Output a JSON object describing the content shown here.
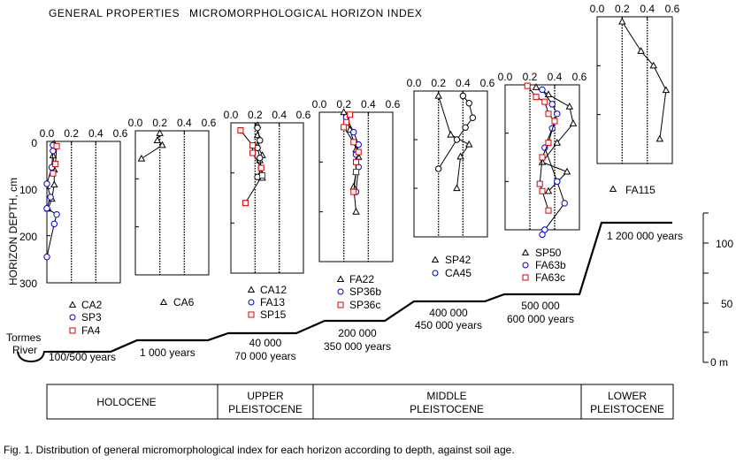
{
  "header": {
    "left_title": "GENERAL PROPERTIES",
    "right_title": "MICROMORPHOLOGICAL HORIZON INDEX"
  },
  "y_axis": {
    "label": "HORIZON DEPTH, cm",
    "ticks": [
      "0",
      "100",
      "200",
      "300"
    ]
  },
  "x_tick_labels": [
    "0.0",
    "0.2",
    "0.4",
    "0.6"
  ],
  "elevation_axis": {
    "ticks": [
      "100",
      "50",
      "0 m"
    ]
  },
  "river_label": [
    "Tormes",
    "River"
  ],
  "age_labels": [
    [
      "100/500 years"
    ],
    [
      "1 000 years"
    ],
    [
      "40 000",
      "70 000 years"
    ],
    [
      "200 000",
      "350 000 years"
    ],
    [
      "400 000",
      "450 000 years"
    ],
    [
      "500 000",
      "600 000 years"
    ],
    [
      "1 200 000 years"
    ]
  ],
  "periods": [
    {
      "lines": [
        "HOLOCENE"
      ]
    },
    {
      "lines": [
        "UPPER",
        "PLEISTOCENE"
      ]
    },
    {
      "lines": [
        "MIDDLE",
        "PLEISTOCENE"
      ]
    },
    {
      "lines": [
        "LOWER",
        "PLEISTOCENE"
      ]
    }
  ],
  "caption": "Fig. 1. Distribution of general micromorphological index for each horizon according to depth, against soil age.",
  "colors": {
    "triangle": "#000000",
    "circle": "#0000cc",
    "square": "#dd0000"
  },
  "chart_data": [
    {
      "type": "scatter",
      "name": "panel-1",
      "xlim": [
        0,
        0.6
      ],
      "ylim": [
        300,
        0
      ],
      "series": [
        {
          "name": "CA2",
          "marker": "triangle",
          "points": [
            [
              0.06,
              5
            ],
            [
              0.05,
              30
            ],
            [
              0.06,
              60
            ],
            [
              0.06,
              92
            ],
            [
              0.04,
              122
            ],
            [
              0.01,
              143
            ]
          ]
        },
        {
          "name": "SP3",
          "marker": "circle",
          "points": [
            [
              0.05,
              8
            ],
            [
              0.05,
              20
            ],
            [
              0.04,
              55
            ],
            [
              0.0,
              90
            ],
            [
              0.03,
              118
            ],
            [
              0.0,
              142
            ],
            [
              0.08,
              155
            ],
            [
              0.06,
              175
            ],
            [
              0.0,
              245
            ]
          ]
        },
        {
          "name": "FA4",
          "marker": "square",
          "points": [
            [
              0.08,
              10
            ],
            [
              0.07,
              48
            ],
            [
              0.05,
              68
            ]
          ]
        }
      ]
    },
    {
      "type": "scatter",
      "name": "panel-2",
      "xlim": [
        0,
        0.6
      ],
      "ylim": [
        300,
        0
      ],
      "series": [
        {
          "name": "CA6",
          "marker": "triangle",
          "points": [
            [
              0.2,
              5
            ],
            [
              0.18,
              20
            ],
            [
              0.22,
              30
            ],
            [
              0.05,
              58
            ]
          ]
        }
      ]
    },
    {
      "type": "scatter",
      "name": "panel-3",
      "xlim": [
        0,
        0.6
      ],
      "ylim": [
        300,
        0
      ],
      "series": [
        {
          "name": "CA12",
          "marker": "triangle",
          "points": [
            [
              0.22,
              5
            ],
            [
              0.22,
              25
            ],
            [
              0.22,
              45
            ],
            [
              0.26,
              65
            ],
            [
              0.24,
              75
            ],
            [
              0.25,
              100
            ],
            [
              0.26,
              110
            ]
          ]
        },
        {
          "name": "FA13",
          "marker": "circle",
          "points": [
            [
              0.22,
              10
            ],
            [
              0.24,
              35
            ],
            [
              0.22,
              50
            ],
            [
              0.24,
              70
            ],
            [
              0.25,
              90
            ],
            [
              0.22,
              108
            ]
          ]
        },
        {
          "name": "SP15",
          "marker": "square",
          "points": [
            [
              0.08,
              15
            ],
            [
              0.18,
              45
            ],
            [
              0.18,
              60
            ],
            [
              0.25,
              90
            ],
            [
              0.26,
              105
            ],
            [
              0.12,
              160
            ]
          ]
        }
      ]
    },
    {
      "type": "scatter",
      "name": "panel-4",
      "xlim": [
        0,
        0.6
      ],
      "ylim": [
        300,
        0
      ],
      "series": [
        {
          "name": "FA22",
          "marker": "triangle",
          "points": [
            [
              0.2,
              0
            ],
            [
              0.25,
              35
            ],
            [
              0.3,
              75
            ],
            [
              0.32,
              90
            ],
            [
              0.3,
              120
            ],
            [
              0.28,
              150
            ],
            [
              0.3,
              200
            ]
          ]
        },
        {
          "name": "SP36b",
          "marker": "circle",
          "points": [
            [
              0.22,
              10
            ],
            [
              0.28,
              40
            ],
            [
              0.32,
              65
            ],
            [
              0.3,
              85
            ],
            [
              0.32,
              110
            ],
            [
              0.3,
              160
            ]
          ]
        },
        {
          "name": "SP36c",
          "marker": "square",
          "points": [
            [
              0.25,
              5
            ],
            [
              0.22,
              20
            ],
            [
              0.2,
              30
            ],
            [
              0.28,
              60
            ],
            [
              0.32,
              80
            ],
            [
              0.3,
              100
            ],
            [
              0.3,
              120
            ],
            [
              0.28,
              160
            ]
          ]
        }
      ]
    },
    {
      "type": "scatter",
      "name": "panel-5",
      "xlim": [
        0,
        0.6
      ],
      "ylim": [
        300,
        0
      ],
      "series": [
        {
          "name": "SP42",
          "marker": "triangle",
          "points": [
            [
              0.2,
              10
            ],
            [
              0.3,
              90
            ],
            [
              0.45,
              110
            ],
            [
              0.38,
              135
            ],
            [
              0.35,
              200
            ]
          ]
        },
        {
          "name": "CA45",
          "marker": "circle",
          "points": [
            [
              0.4,
              10
            ],
            [
              0.45,
              25
            ],
            [
              0.48,
              55
            ],
            [
              0.42,
              75
            ],
            [
              0.35,
              100
            ],
            [
              0.2,
              160
            ]
          ]
        }
      ]
    },
    {
      "type": "scatter",
      "name": "panel-6",
      "xlim": [
        0,
        0.6
      ],
      "ylim": [
        300,
        0
      ],
      "series": [
        {
          "name": "SP50",
          "marker": "triangle",
          "points": [
            [
              0.25,
              5
            ],
            [
              0.35,
              20
            ],
            [
              0.52,
              45
            ],
            [
              0.55,
              80
            ],
            [
              0.42,
              120
            ],
            [
              0.3,
              160
            ],
            [
              0.5,
              180
            ],
            [
              0.35,
              220
            ]
          ]
        },
        {
          "name": "FA63b",
          "marker": "circle",
          "points": [
            [
              0.3,
              10
            ],
            [
              0.38,
              40
            ],
            [
              0.42,
              60
            ],
            [
              0.38,
              90
            ],
            [
              0.32,
              130
            ],
            [
              0.42,
              200
            ],
            [
              0.48,
              245
            ],
            [
              0.32,
              300
            ],
            [
              0.3,
              310
            ]
          ]
        },
        {
          "name": "FA63c",
          "marker": "square",
          "points": [
            [
              0.18,
              2
            ],
            [
              0.25,
              25
            ],
            [
              0.32,
              35
            ],
            [
              0.35,
              60
            ],
            [
              0.4,
              75
            ],
            [
              0.35,
              120
            ],
            [
              0.3,
              150
            ],
            [
              0.28,
              205
            ],
            [
              0.3,
              220
            ],
            [
              0.35,
              260
            ]
          ]
        }
      ]
    },
    {
      "type": "scatter",
      "name": "panel-7",
      "xlim": [
        0,
        0.6
      ],
      "ylim": [
        300,
        0
      ],
      "series": [
        {
          "name": "FA115",
          "marker": "triangle",
          "points": [
            [
              0.2,
              10
            ],
            [
              0.35,
              70
            ],
            [
              0.45,
              100
            ],
            [
              0.55,
              150
            ],
            [
              0.5,
              250
            ]
          ]
        }
      ]
    }
  ]
}
